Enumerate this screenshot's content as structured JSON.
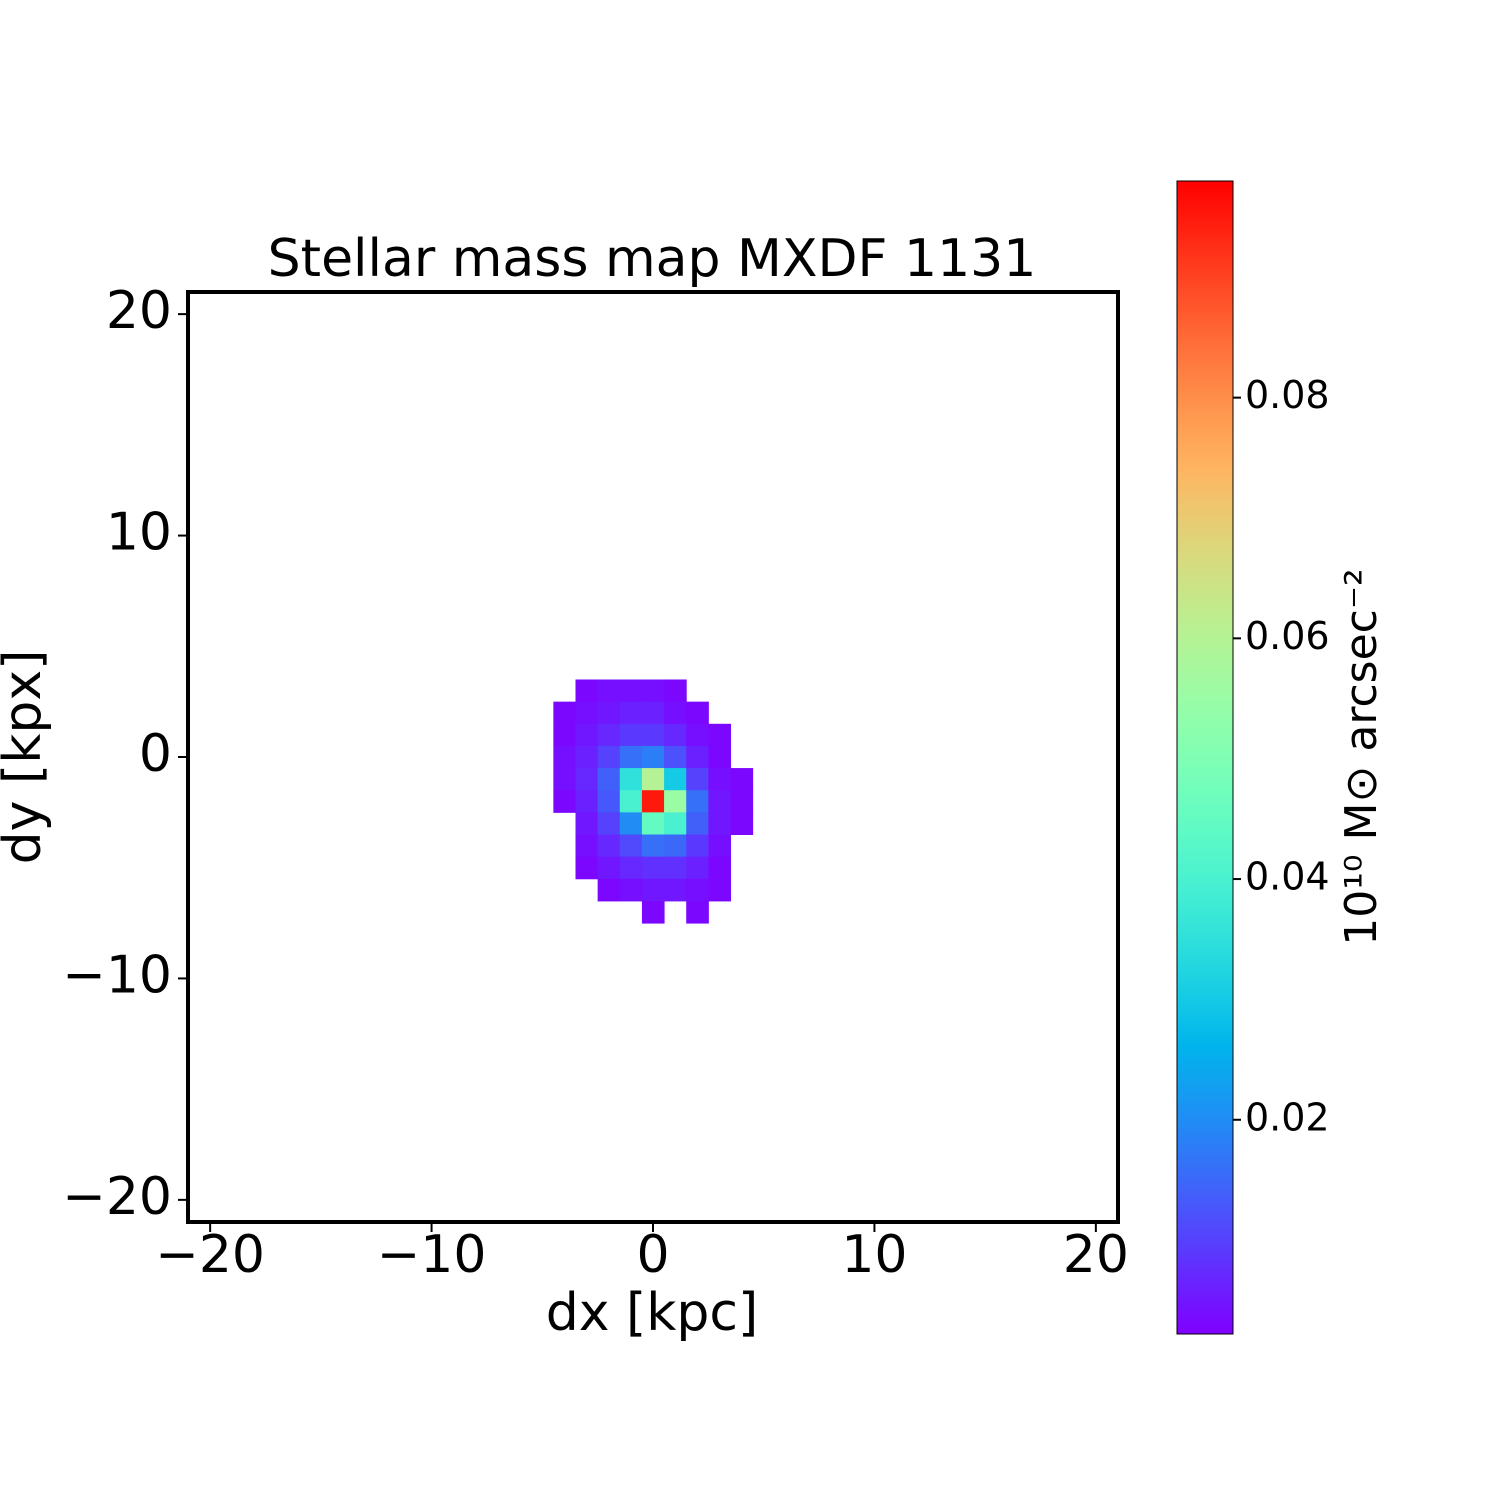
{
  "chart_data": {
    "type": "heatmap",
    "title": "Stellar mass map MXDF 1131",
    "xlabel": "dx [kpc]",
    "ylabel": "dy [kpx]",
    "colorbar_label": "10¹⁰ M⊙ arcsec⁻²",
    "colormap": "rainbow",
    "x": [
      -4,
      -3,
      -2,
      -1,
      0,
      1,
      2,
      3,
      4
    ],
    "y": [
      3,
      2,
      1,
      0,
      -1,
      -2,
      -3,
      -4,
      -5,
      -6,
      -7
    ],
    "values": [
      [
        null,
        0.003,
        0.004,
        0.004,
        0.004,
        0.003,
        null,
        null,
        null
      ],
      [
        0.003,
        0.004,
        0.005,
        0.006,
        0.006,
        0.004,
        0.003,
        null,
        null
      ],
      [
        0.003,
        0.005,
        0.007,
        0.009,
        0.009,
        0.007,
        0.004,
        0.003,
        null
      ],
      [
        0.004,
        0.006,
        0.01,
        0.016,
        0.018,
        0.012,
        0.006,
        0.003,
        null
      ],
      [
        0.004,
        0.007,
        0.014,
        0.035,
        0.06,
        0.03,
        0.01,
        0.004,
        0.003
      ],
      [
        0.003,
        0.006,
        0.013,
        0.04,
        0.095,
        0.055,
        0.016,
        0.005,
        0.003
      ],
      [
        null,
        0.005,
        0.01,
        0.02,
        0.045,
        0.04,
        0.014,
        0.005,
        0.003
      ],
      [
        null,
        0.004,
        0.007,
        0.011,
        0.016,
        0.015,
        0.009,
        0.004,
        null
      ],
      [
        null,
        0.003,
        0.005,
        0.007,
        0.008,
        0.008,
        0.006,
        0.003,
        null
      ],
      [
        null,
        null,
        0.003,
        0.004,
        0.005,
        0.005,
        0.004,
        0.003,
        null
      ],
      [
        null,
        null,
        null,
        null,
        0.003,
        null,
        0.003,
        null,
        null
      ]
    ],
    "xlim": [
      -21,
      21
    ],
    "ylim": [
      -21,
      21
    ],
    "xticks": [
      {
        "value": -20,
        "label": "−20"
      },
      {
        "value": -10,
        "label": "−10"
      },
      0,
      10,
      20
    ],
    "yticks": [
      {
        "value": -20,
        "label": "−20"
      },
      {
        "value": -10,
        "label": "−10"
      },
      0,
      10,
      20
    ],
    "clim": [
      0.0022,
      0.098
    ],
    "cticks": [
      0.02,
      0.04,
      0.06,
      0.08
    ]
  }
}
